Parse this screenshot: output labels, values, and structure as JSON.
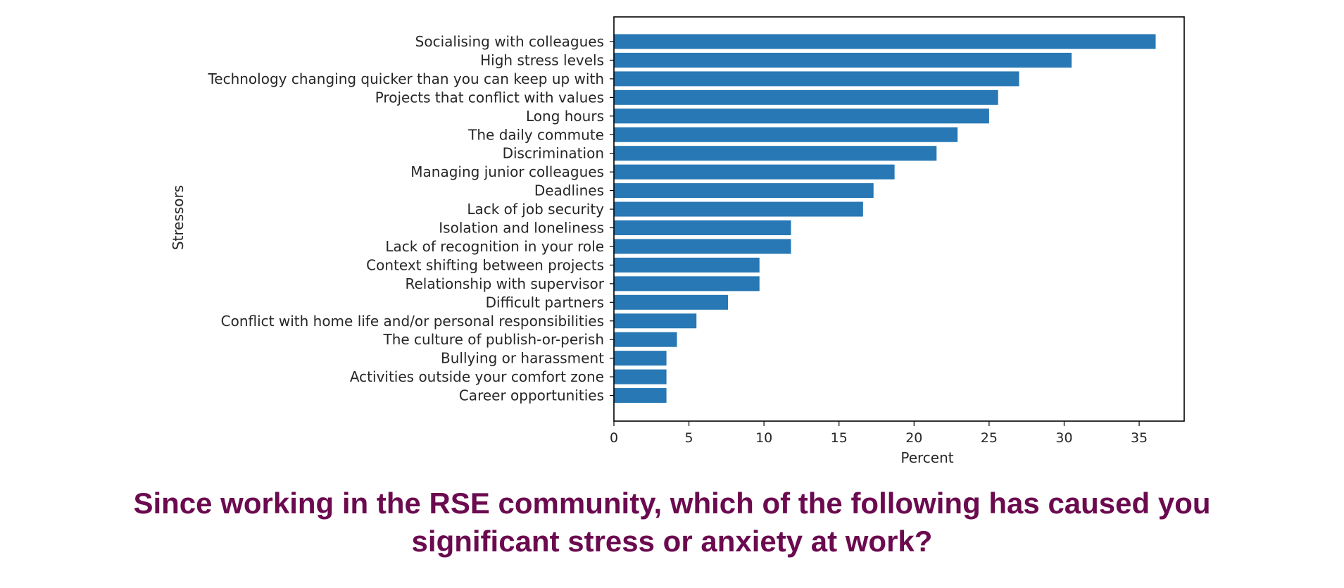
{
  "colors": {
    "bar": "#2778b4",
    "title": "#6b0a4f",
    "axis": "#000000"
  },
  "chart_data": {
    "type": "bar",
    "orientation": "horizontal",
    "xlabel": "Percent",
    "ylabel": "Stressors",
    "xlim": [
      0,
      38
    ],
    "xticks": [
      0,
      5,
      10,
      15,
      20,
      25,
      30,
      35
    ],
    "grid": false,
    "categories": [
      "Socialising with colleagues",
      "High stress levels",
      "Technology changing quicker than you can keep up with",
      "Projects that conflict with values",
      "Long hours",
      "The daily commute",
      "Discrimination",
      "Managing junior colleagues",
      "Deadlines",
      "Lack of job security",
      "Isolation and loneliness",
      "Lack of recognition in your role",
      "Context shifting between projects",
      "Relationship with supervisor",
      "Difficult partners ",
      "Conflict with home life and/or personal responsibilities",
      "The culture of publish-or-perish",
      "Bullying  or harassment",
      "Activities outside your comfort zone",
      "Career opportunities"
    ],
    "values": [
      36.1,
      30.5,
      27.0,
      25.6,
      25.0,
      22.9,
      21.5,
      18.7,
      17.3,
      16.6,
      11.8,
      11.8,
      9.7,
      9.7,
      7.6,
      5.5,
      4.2,
      3.5,
      3.5,
      3.5
    ]
  },
  "question": {
    "line1": "Since working in the RSE community, which of the following has caused you",
    "line2": "significant stress or anxiety at work?"
  }
}
